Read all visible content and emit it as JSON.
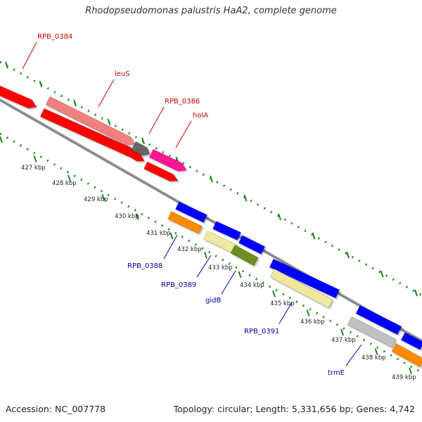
{
  "title": "Rhodopseudomonas palustris HaA2, complete genome",
  "footer": {
    "accession": "Accession: NC_007778",
    "topology": "Topology: circular; Length: 5,331,656 bp; Genes: 4,742"
  },
  "colors": {
    "forward_label": "#cc0000",
    "reverse_label": "#0000aa",
    "backbone": "#888888",
    "tick": "#1a8a1a"
  },
  "scale_labels": [
    "427 kbp",
    "428 kbp",
    "429 kbp",
    "430 kbp",
    "431 kbp",
    "432 kbp",
    "433 kbp",
    "434 kbp",
    "435 kbp",
    "436 kbp",
    "437 kbp",
    "438 kbp",
    "439 kbp"
  ],
  "gene_labels": [
    {
      "text": "RPB_0384",
      "strand": "forward"
    },
    {
      "text": "leuS",
      "strand": "forward"
    },
    {
      "text": "RPB_0386",
      "strand": "forward"
    },
    {
      "text": "holA",
      "strand": "forward"
    },
    {
      "text": "RPB_0388",
      "strand": "reverse"
    },
    {
      "text": "RPB_0389",
      "strand": "reverse"
    },
    {
      "text": "gidB",
      "strand": "reverse"
    },
    {
      "text": "RPB_0391",
      "strand": "reverse"
    },
    {
      "text": "trmE",
      "strand": "reverse"
    }
  ],
  "features": [
    {
      "color": "#ff0000",
      "strand": "forward"
    },
    {
      "color": "#f08080",
      "strand": "forward"
    },
    {
      "color": "#ff0000",
      "strand": "forward"
    },
    {
      "color": "#ff0000",
      "strand": "forward"
    },
    {
      "color": "#666666",
      "strand": "forward"
    },
    {
      "color": "#ff1493",
      "strand": "forward"
    },
    {
      "color": "#ff0000",
      "strand": "forward"
    },
    {
      "color": "#0000ff",
      "strand": "reverse"
    },
    {
      "color": "#ff8c00",
      "strand": "reverse"
    },
    {
      "color": "#0000ff",
      "strand": "reverse"
    },
    {
      "color": "#f0e8a0",
      "strand": "reverse"
    },
    {
      "color": "#0000ff",
      "strand": "reverse"
    },
    {
      "color": "#6b8e23",
      "strand": "reverse"
    },
    {
      "color": "#0000ff",
      "strand": "reverse"
    },
    {
      "color": "#f0e8a0",
      "strand": "reverse"
    },
    {
      "color": "#0000ff",
      "strand": "reverse"
    },
    {
      "color": "#c0c0c0",
      "strand": "reverse"
    },
    {
      "color": "#0000ff",
      "strand": "reverse"
    },
    {
      "color": "#ff8c00",
      "strand": "reverse"
    }
  ]
}
